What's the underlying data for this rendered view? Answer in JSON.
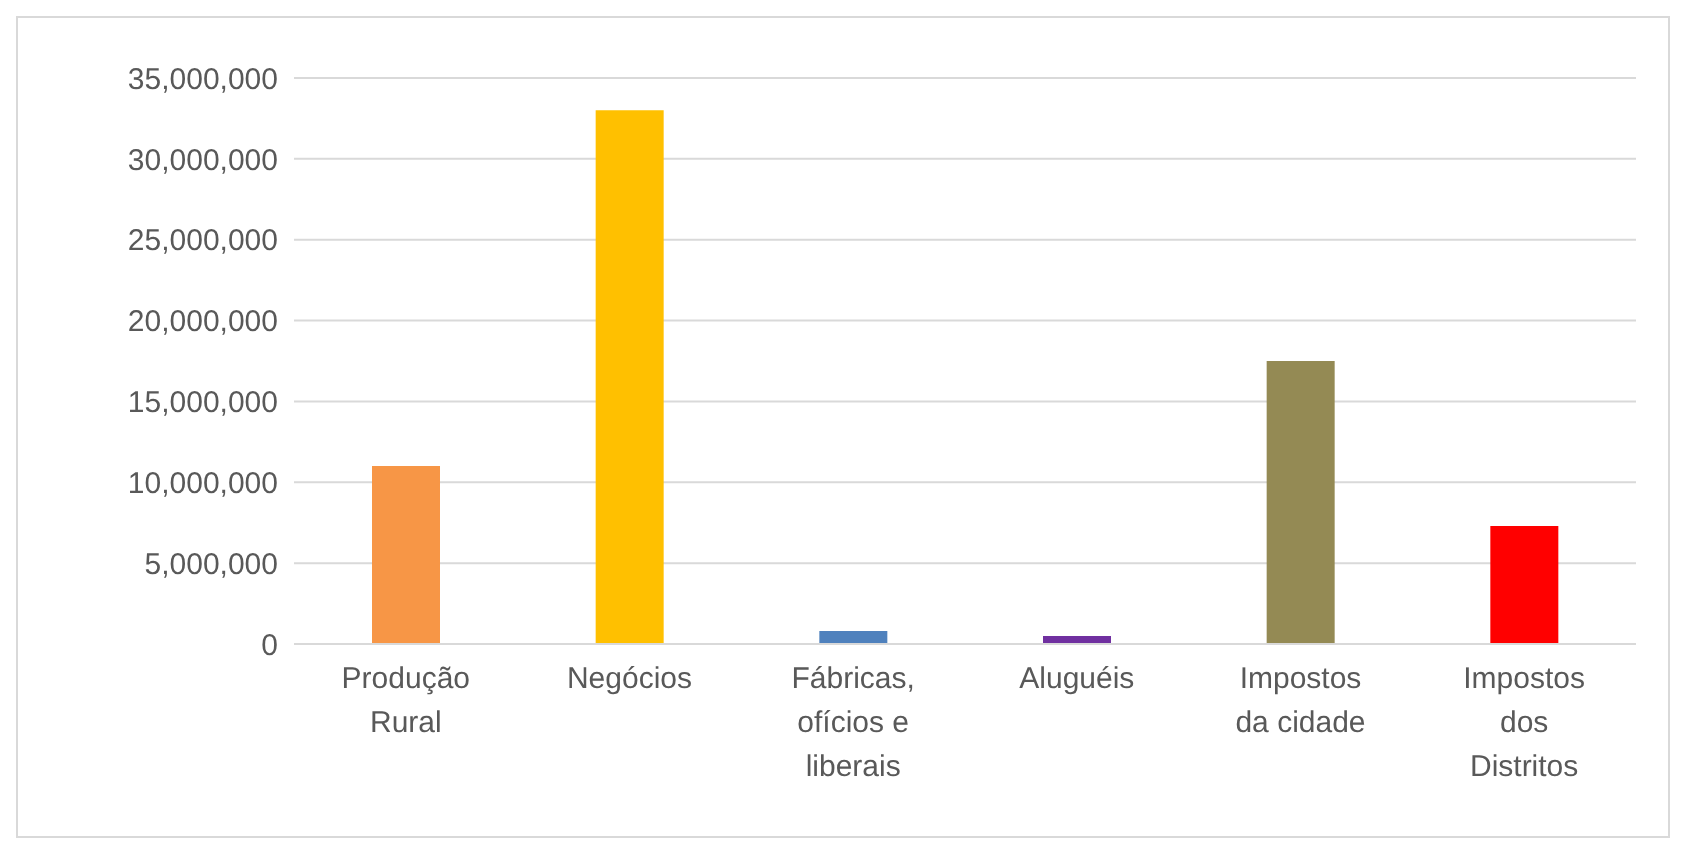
{
  "chart_data": {
    "type": "bar",
    "categories": [
      "Produção Rural",
      "Negócios",
      "Fábricas, ofícios e liberais",
      "Aluguéis",
      "Impostos da cidade",
      "Impostos dos Distritos"
    ],
    "values": [
      11000000,
      33000000,
      800000,
      500000,
      17500000,
      7300000
    ],
    "colors": [
      "#f79646",
      "#ffc000",
      "#4f81bd",
      "#7030a0",
      "#948a54",
      "#ff0000"
    ],
    "ylim": [
      0,
      35000000
    ],
    "yticks": [
      0,
      {
        "value": 5000000,
        "label": "5,000,000"
      },
      {
        "value": 10000000,
        "label": "10,000,000"
      },
      {
        "value": 15000000,
        "label": "15,000,000"
      },
      {
        "value": 20000000,
        "label": "20,000,000"
      },
      {
        "value": 25000000,
        "label": "25,000,000"
      },
      {
        "value": 30000000,
        "label": "30,000,000"
      },
      {
        "value": 35000000,
        "label": "35,000,000"
      }
    ],
    "grid": "y",
    "legend": false
  }
}
